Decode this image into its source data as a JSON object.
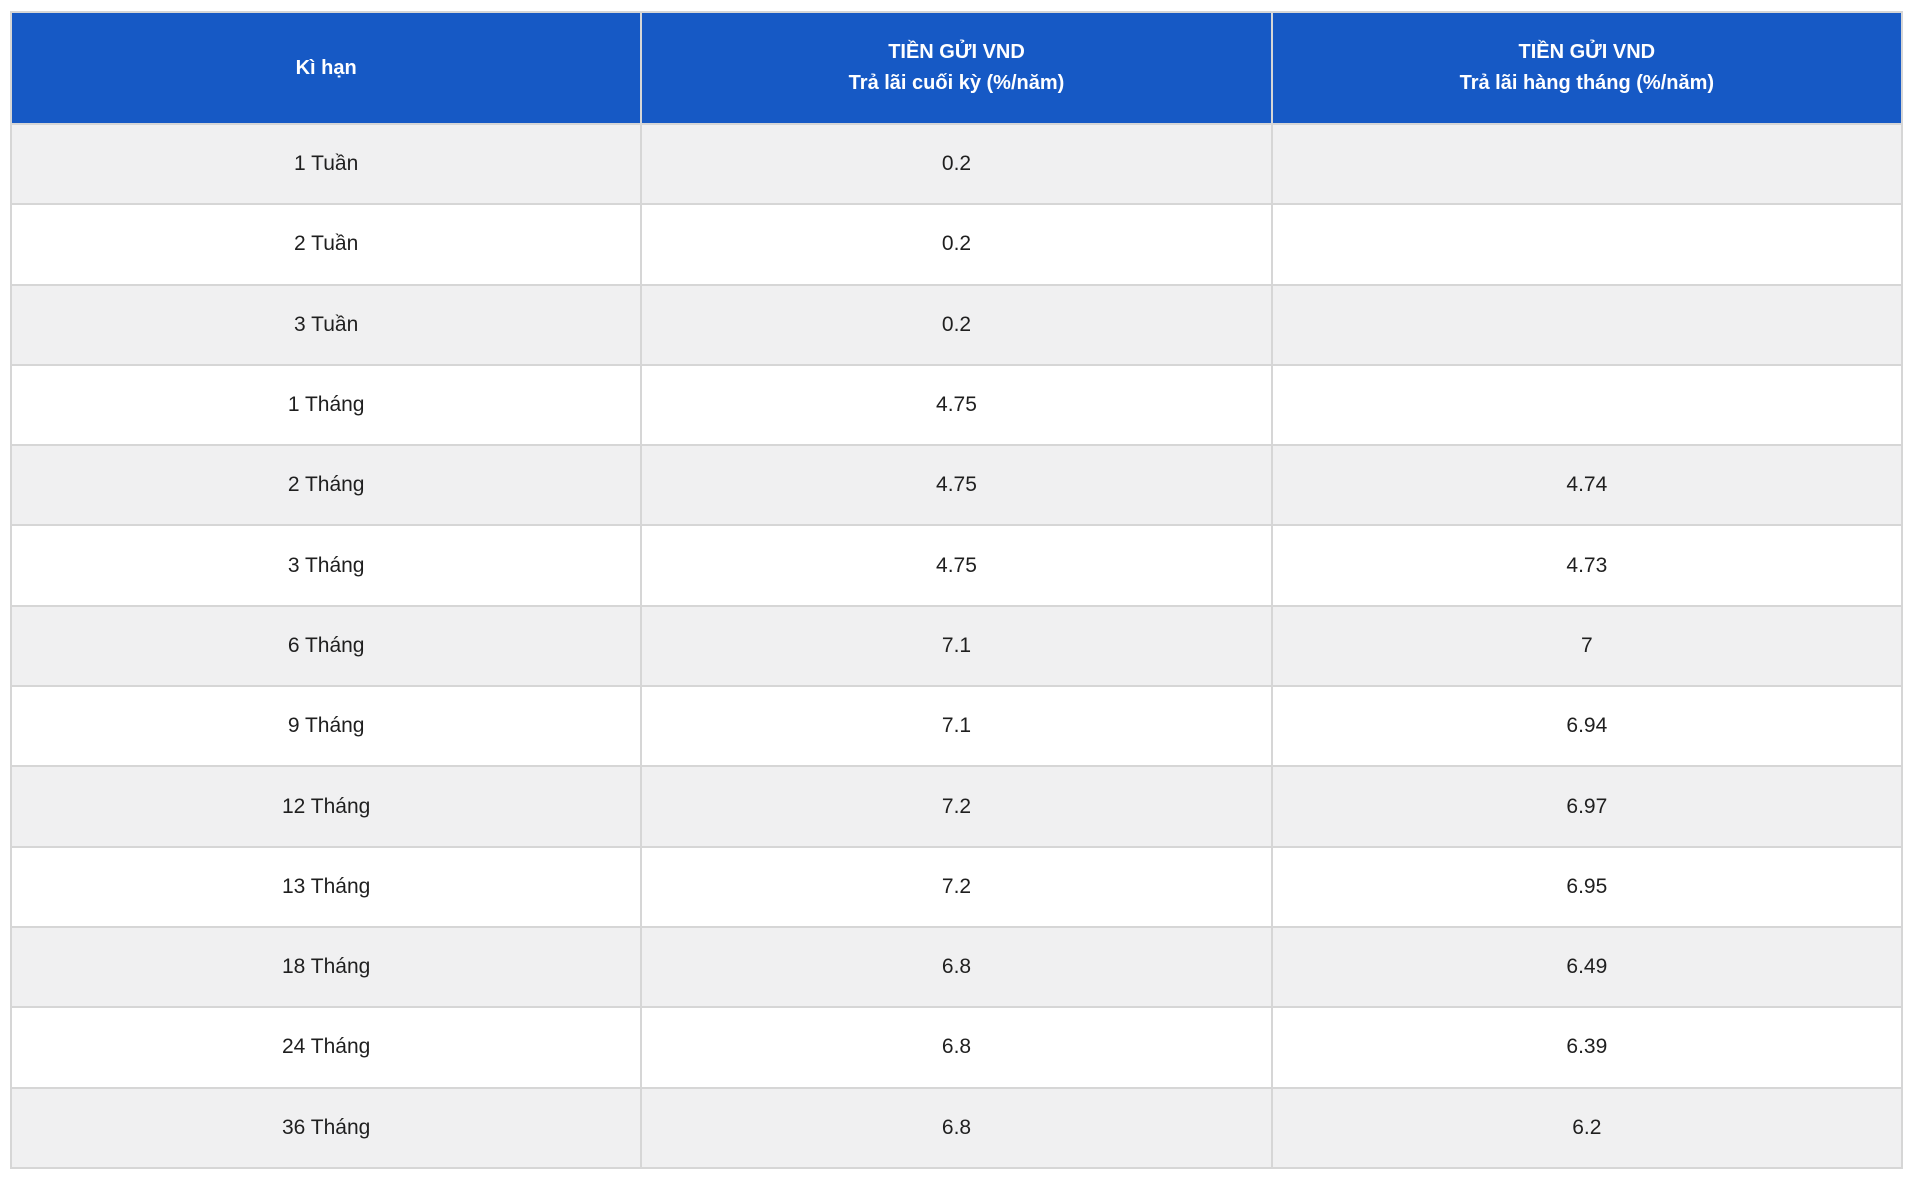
{
  "colors": {
    "header_bg": "#1659c5",
    "header_text": "#ffffff",
    "row_bg": "#ffffff",
    "row_alt_bg": "#f0f0f1",
    "border": "#d6d6d6",
    "text": "#1f1f1f"
  },
  "table": {
    "columns": [
      {
        "line1": "Kì hạn",
        "line2": ""
      },
      {
        "line1": "TIỀN GỬI VND",
        "line2": "Trả lãi cuối kỳ (%/năm)"
      },
      {
        "line1": "TIỀN GỬI VND",
        "line2": "Trả lãi hàng tháng (%/năm)"
      }
    ],
    "rows": [
      {
        "term": "1 Tuần",
        "end_of_term": "0.2",
        "monthly": ""
      },
      {
        "term": "2 Tuần",
        "end_of_term": "0.2",
        "monthly": ""
      },
      {
        "term": "3 Tuần",
        "end_of_term": "0.2",
        "monthly": ""
      },
      {
        "term": "1 Tháng",
        "end_of_term": "4.75",
        "monthly": ""
      },
      {
        "term": "2 Tháng",
        "end_of_term": "4.75",
        "monthly": "4.74"
      },
      {
        "term": "3 Tháng",
        "end_of_term": "4.75",
        "monthly": "4.73"
      },
      {
        "term": "6 Tháng",
        "end_of_term": "7.1",
        "monthly": "7"
      },
      {
        "term": "9 Tháng",
        "end_of_term": "7.1",
        "monthly": "6.94"
      },
      {
        "term": "12 Tháng",
        "end_of_term": "7.2",
        "monthly": "6.97"
      },
      {
        "term": "13 Tháng",
        "end_of_term": "7.2",
        "monthly": "6.95"
      },
      {
        "term": "18 Tháng",
        "end_of_term": "6.8",
        "monthly": "6.49"
      },
      {
        "term": "24 Tháng",
        "end_of_term": "6.8",
        "monthly": "6.39"
      },
      {
        "term": "36 Tháng",
        "end_of_term": "6.8",
        "monthly": "6.2"
      }
    ]
  }
}
